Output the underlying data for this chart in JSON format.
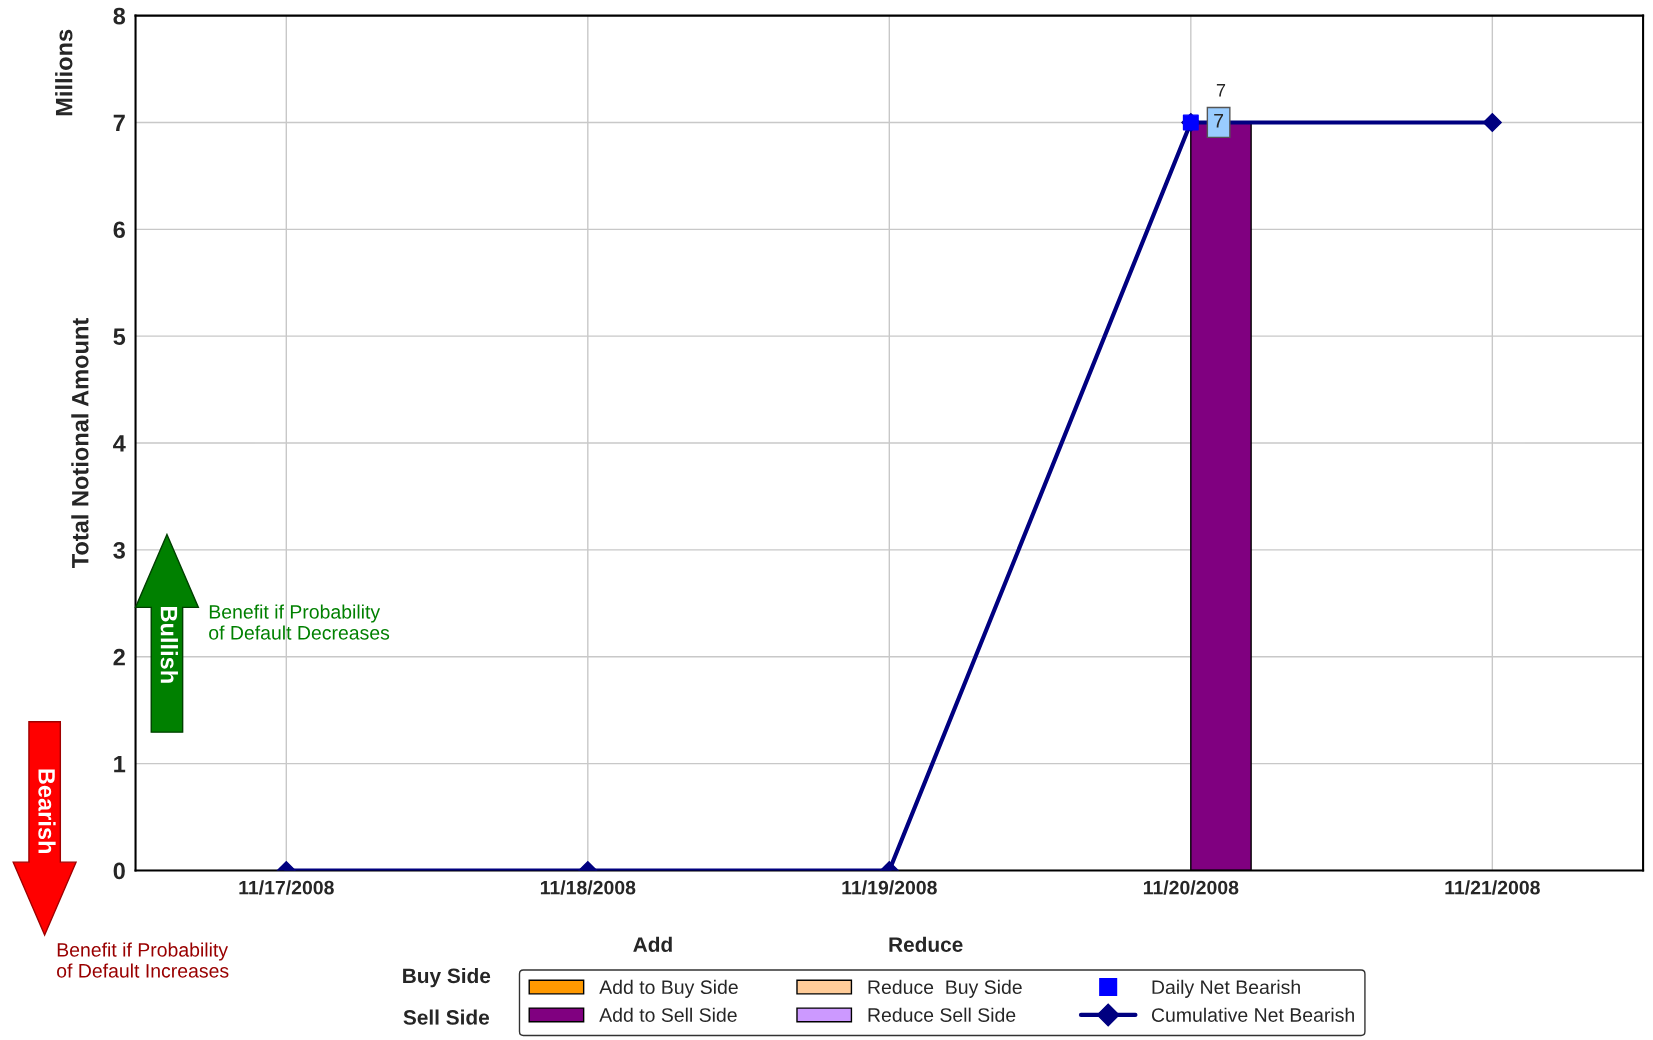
{
  "chart_data": {
    "type": "bar",
    "ylabel": "Total Notional Amount",
    "categories": [
      "11/17/2008",
      "11/18/2008",
      "11/19/2008",
      "11/20/2008",
      "11/21/2008"
    ],
    "series": [
      {
        "name": "Add to Buy Side",
        "color": "#ff9900",
        "values": [
          null,
          null,
          null,
          null,
          null
        ]
      },
      {
        "name": "Add to Sell Side",
        "color": "#800080",
        "values": [
          null,
          null,
          null,
          7,
          null
        ],
        "value_labels": [
          null,
          null,
          null,
          "7",
          null
        ]
      },
      {
        "name": "Reduce  Buy Side",
        "color": "#ffcc99",
        "values": [
          null,
          null,
          null,
          null,
          null
        ]
      },
      {
        "name": "Reduce Sell Side",
        "color": "#cc99ff",
        "values": [
          null,
          null,
          null,
          null,
          null
        ]
      },
      {
        "name": "Daily Net Bearish",
        "type": "scatter",
        "marker": "square",
        "color": "#0000ff",
        "values": [
          null,
          null,
          null,
          7,
          null
        ],
        "value_labels": [
          null,
          null,
          null,
          "7",
          null
        ]
      },
      {
        "name": "Cumulative Net Bearish",
        "type": "line",
        "marker": "diamond",
        "color": "#000080",
        "values": [
          0,
          0,
          0,
          7,
          7
        ]
      }
    ],
    "ylim": [
      0,
      8
    ],
    "yticks": [
      0,
      1,
      2,
      3,
      4,
      5,
      6,
      7,
      8
    ],
    "grid": true,
    "legend": "bottom",
    "annotations": [
      "Millions",
      "Bullish",
      "Benefit if Probability\nof Default Decreases",
      "Bearish",
      "Benefit if Probability\nof Default Increases",
      "Add",
      "Reduce",
      "Buy Side",
      "Sell Side"
    ]
  }
}
